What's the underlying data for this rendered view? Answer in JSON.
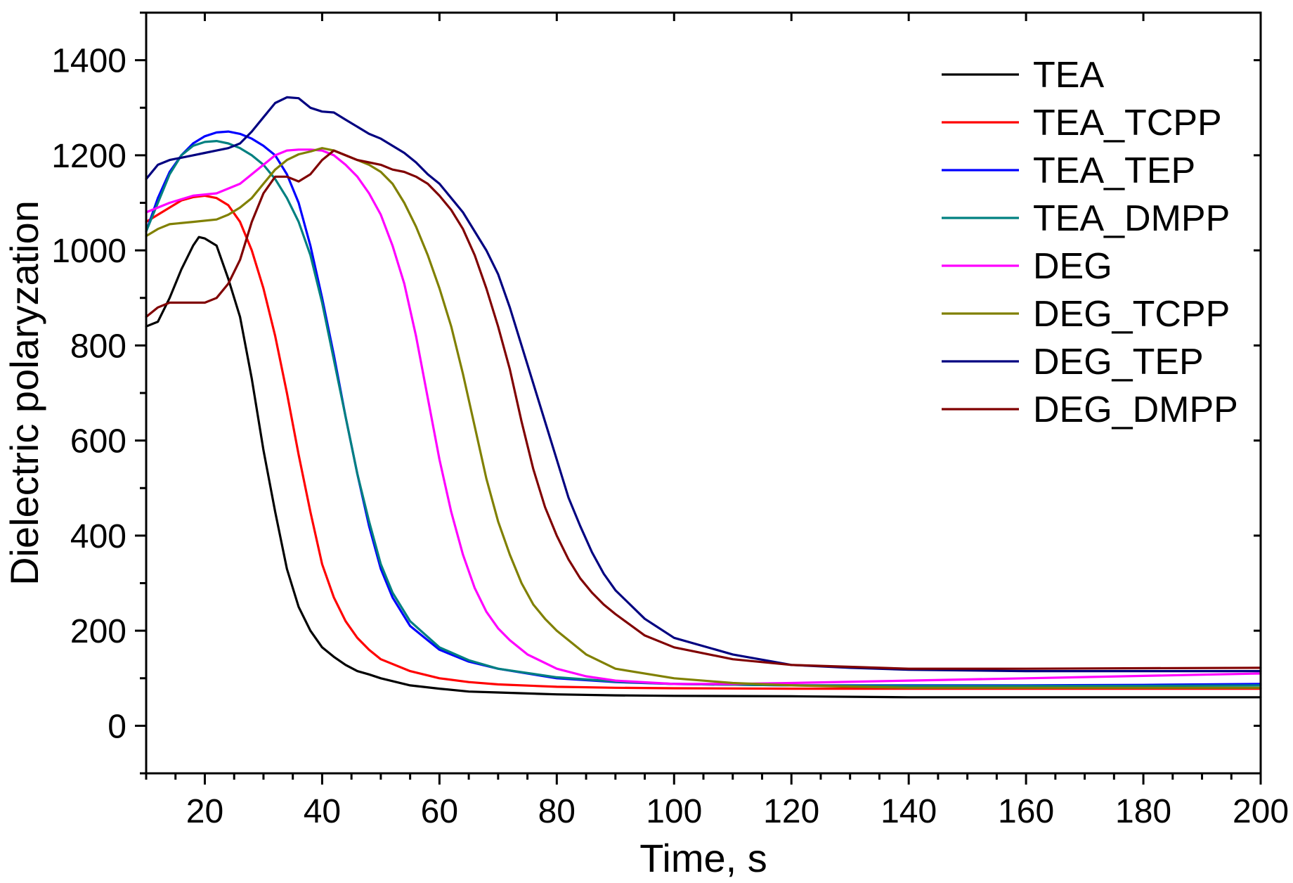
{
  "chart_data": {
    "type": "line",
    "title": "",
    "xlabel": "Time, s",
    "ylabel": "Dielectric polaryzation",
    "xlim": [
      10,
      200
    ],
    "ylim": [
      -100,
      1500
    ],
    "xticks": [
      20,
      40,
      60,
      80,
      100,
      120,
      140,
      160,
      180,
      200
    ],
    "yticks": [
      0,
      200,
      400,
      600,
      800,
      1000,
      1200,
      1400
    ],
    "x_minor_step": 5,
    "y_minor_step": 100,
    "grid": false,
    "legend_position": "top-right",
    "series": [
      {
        "name": "TEA",
        "color": "#000000",
        "x": [
          10,
          12,
          14,
          16,
          18,
          19,
          20,
          22,
          24,
          26,
          28,
          30,
          32,
          34,
          36,
          38,
          40,
          42,
          44,
          46,
          48,
          50,
          55,
          60,
          65,
          70,
          80,
          90,
          100,
          120,
          140,
          160,
          180,
          200
        ],
        "y": [
          840,
          850,
          900,
          960,
          1010,
          1028,
          1025,
          1010,
          940,
          860,
          730,
          580,
          450,
          330,
          250,
          200,
          165,
          145,
          128,
          115,
          108,
          100,
          85,
          78,
          72,
          70,
          66,
          64,
          63,
          62,
          60,
          60,
          60,
          60
        ]
      },
      {
        "name": "TEA_TCPP",
        "color": "#ff0000",
        "x": [
          10,
          12,
          14,
          16,
          18,
          20,
          22,
          24,
          26,
          28,
          30,
          32,
          34,
          36,
          38,
          40,
          42,
          44,
          46,
          48,
          50,
          55,
          60,
          65,
          70,
          80,
          90,
          100,
          120,
          140,
          160,
          180,
          200
        ],
        "y": [
          1060,
          1075,
          1090,
          1105,
          1112,
          1115,
          1110,
          1095,
          1060,
          1000,
          920,
          820,
          700,
          570,
          450,
          340,
          270,
          220,
          185,
          160,
          140,
          115,
          100,
          92,
          87,
          82,
          80,
          79,
          78,
          78,
          78,
          78,
          78
        ]
      },
      {
        "name": "TEA_TEP",
        "color": "#0000ff",
        "x": [
          10,
          12,
          14,
          16,
          18,
          20,
          22,
          24,
          26,
          28,
          30,
          32,
          34,
          36,
          38,
          40,
          42,
          44,
          46,
          48,
          50,
          52,
          55,
          60,
          65,
          70,
          80,
          90,
          100,
          120,
          140,
          160,
          180,
          200
        ],
        "y": [
          1040,
          1110,
          1165,
          1200,
          1225,
          1240,
          1248,
          1250,
          1245,
          1235,
          1220,
          1200,
          1160,
          1100,
          1010,
          900,
          780,
          650,
          530,
          420,
          330,
          270,
          210,
          160,
          135,
          120,
          100,
          92,
          88,
          85,
          85,
          85,
          86,
          88
        ]
      },
      {
        "name": "TEA_DMPP",
        "color": "#008080",
        "x": [
          10,
          12,
          14,
          16,
          18,
          20,
          22,
          24,
          26,
          28,
          30,
          32,
          34,
          36,
          38,
          40,
          42,
          44,
          46,
          48,
          50,
          52,
          55,
          60,
          65,
          70,
          80,
          90,
          100,
          120,
          140,
          160,
          180,
          200
        ],
        "y": [
          1040,
          1100,
          1160,
          1200,
          1220,
          1228,
          1230,
          1225,
          1215,
          1200,
          1180,
          1150,
          1110,
          1060,
          990,
          890,
          770,
          650,
          530,
          430,
          340,
          280,
          220,
          165,
          138,
          120,
          102,
          93,
          88,
          85,
          84,
          84,
          84,
          85
        ]
      },
      {
        "name": "DEG",
        "color": "#ff00ff",
        "x": [
          10,
          14,
          18,
          22,
          26,
          28,
          30,
          32,
          34,
          36,
          38,
          40,
          42,
          44,
          46,
          48,
          50,
          52,
          54,
          56,
          58,
          60,
          62,
          64,
          66,
          68,
          70,
          72,
          75,
          80,
          85,
          90,
          100,
          110,
          120,
          140,
          160,
          180,
          200
        ],
        "y": [
          1080,
          1100,
          1115,
          1120,
          1140,
          1160,
          1180,
          1200,
          1210,
          1212,
          1212,
          1210,
          1200,
          1180,
          1155,
          1120,
          1075,
          1010,
          930,
          820,
          690,
          560,
          450,
          360,
          290,
          240,
          205,
          180,
          150,
          120,
          104,
          95,
          88,
          88,
          90,
          95,
          100,
          105,
          110
        ]
      },
      {
        "name": "DEG_TCPP",
        "color": "#808000",
        "x": [
          10,
          12,
          14,
          18,
          22,
          24,
          26,
          28,
          30,
          32,
          34,
          36,
          38,
          40,
          42,
          44,
          46,
          48,
          50,
          52,
          54,
          56,
          58,
          60,
          62,
          64,
          66,
          68,
          70,
          72,
          74,
          76,
          78,
          80,
          85,
          90,
          100,
          110,
          120,
          140,
          160,
          180,
          200
        ],
        "y": [
          1030,
          1045,
          1055,
          1060,
          1065,
          1075,
          1090,
          1110,
          1140,
          1170,
          1190,
          1202,
          1208,
          1215,
          1210,
          1200,
          1190,
          1180,
          1165,
          1140,
          1100,
          1050,
          990,
          920,
          840,
          740,
          630,
          520,
          430,
          360,
          300,
          255,
          225,
          200,
          150,
          120,
          100,
          90,
          85,
          80,
          80,
          80,
          80
        ]
      },
      {
        "name": "DEG_TEP",
        "color": "#000080",
        "x": [
          10,
          12,
          14,
          16,
          18,
          20,
          22,
          24,
          26,
          28,
          30,
          32,
          34,
          36,
          38,
          40,
          42,
          44,
          46,
          48,
          50,
          52,
          54,
          56,
          58,
          60,
          62,
          64,
          66,
          68,
          70,
          72,
          74,
          76,
          78,
          80,
          82,
          84,
          86,
          88,
          90,
          95,
          100,
          110,
          120,
          130,
          140,
          160,
          180,
          200
        ],
        "y": [
          1150,
          1180,
          1190,
          1195,
          1200,
          1205,
          1210,
          1215,
          1225,
          1250,
          1280,
          1310,
          1322,
          1320,
          1300,
          1292,
          1290,
          1275,
          1260,
          1245,
          1235,
          1220,
          1205,
          1185,
          1160,
          1140,
          1110,
          1080,
          1040,
          1000,
          950,
          880,
          800,
          720,
          640,
          560,
          480,
          420,
          365,
          320,
          285,
          225,
          185,
          150,
          128,
          122,
          118,
          115,
          115,
          115
        ]
      },
      {
        "name": "DEG_DMPP",
        "color": "#800000",
        "x": [
          10,
          12,
          14,
          16,
          18,
          20,
          22,
          24,
          26,
          28,
          30,
          32,
          34,
          36,
          38,
          40,
          42,
          44,
          46,
          48,
          50,
          52,
          54,
          56,
          58,
          60,
          62,
          64,
          66,
          68,
          70,
          72,
          74,
          76,
          78,
          80,
          82,
          84,
          86,
          88,
          90,
          95,
          100,
          110,
          120,
          130,
          140,
          160,
          180,
          200
        ],
        "y": [
          860,
          880,
          890,
          890,
          890,
          890,
          900,
          930,
          980,
          1060,
          1120,
          1155,
          1155,
          1145,
          1160,
          1190,
          1210,
          1200,
          1190,
          1185,
          1180,
          1170,
          1165,
          1155,
          1140,
          1115,
          1085,
          1045,
          990,
          920,
          840,
          750,
          640,
          540,
          460,
          400,
          350,
          310,
          280,
          255,
          235,
          190,
          165,
          140,
          128,
          124,
          120,
          120,
          121,
          122
        ]
      }
    ]
  }
}
